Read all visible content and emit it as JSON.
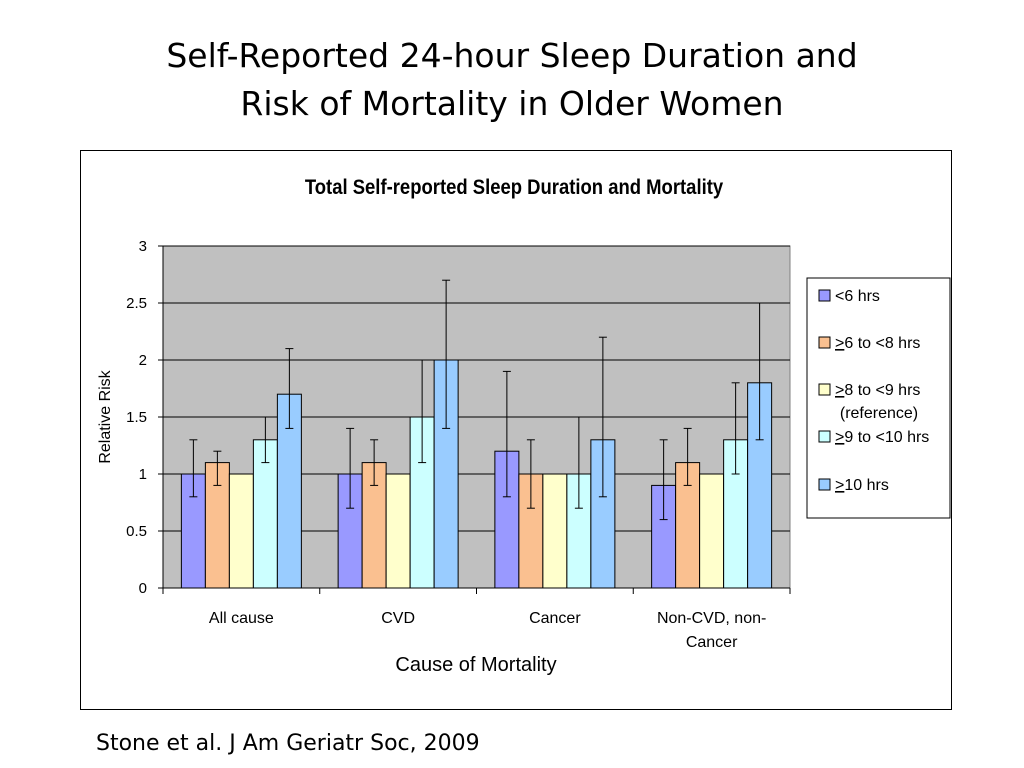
{
  "slide": {
    "title_line1": "Self-Reported 24-hour Sleep Duration and",
    "title_line2": "Risk of Mortality in Older Women",
    "citation": "Stone et al. J Am Geriatr Soc, 2009"
  },
  "chart_data": {
    "type": "bar",
    "title": "Total Self-reported Sleep Duration and Mortality",
    "xlabel": "Cause of Mortality",
    "ylabel": "Relative Risk",
    "ylim": [
      0,
      3
    ],
    "yticks": [
      0,
      0.5,
      1,
      1.5,
      2,
      2.5,
      3
    ],
    "ytick_labels": [
      "0",
      "0.5",
      "1",
      "1.5",
      "2",
      "2.5",
      "3"
    ],
    "grid": true,
    "legend_position": "right",
    "categories": [
      [
        "All cause"
      ],
      [
        "CVD"
      ],
      [
        "Cancer"
      ],
      [
        "Non-CVD, non-",
        "Cancer"
      ]
    ],
    "series": [
      {
        "name": "<6 hrs",
        "color": "#9999ff",
        "values": [
          1.0,
          1.0,
          1.2,
          0.9
        ],
        "error_low": [
          0.8,
          0.7,
          0.8,
          0.6
        ],
        "error_high": [
          1.3,
          1.4,
          1.9,
          1.3
        ]
      },
      {
        "name": ">6 to <8 hrs",
        "color": "#fac090",
        "values": [
          1.1,
          1.1,
          1.0,
          1.1
        ],
        "error_low": [
          0.9,
          0.9,
          0.7,
          0.9
        ],
        "error_high": [
          1.2,
          1.3,
          1.3,
          1.4
        ]
      },
      {
        "name": ">8 to <9 hrs (reference)",
        "color": "#ffffcc",
        "values": [
          1.0,
          1.0,
          1.0,
          1.0
        ]
      },
      {
        "name": ">9 to <10 hrs",
        "color": "#ccffff",
        "values": [
          1.3,
          1.5,
          1.0,
          1.3
        ],
        "error_low": [
          1.1,
          1.1,
          0.7,
          1.0
        ],
        "error_high": [
          1.5,
          2.0,
          1.5,
          1.8
        ]
      },
      {
        "name": ">10 hrs",
        "color": "#99ccff",
        "values": [
          1.7,
          2.0,
          1.3,
          1.8
        ],
        "error_low": [
          1.4,
          1.4,
          0.8,
          1.3
        ],
        "error_high": [
          2.1,
          2.7,
          2.2,
          2.5
        ]
      }
    ],
    "legend_lines": [
      [
        {
          "t": "<6 hrs"
        }
      ],
      [
        {
          "t": ">",
          "u": true
        },
        {
          "t": "6 to <8 hrs"
        }
      ],
      [
        {
          "t": ">",
          "u": true
        },
        {
          "t": "8 to <9 hrs"
        }
      ],
      [
        {
          "t": "(reference)"
        }
      ],
      [
        {
          "t": ">",
          "u": true
        },
        {
          "t": "9 to <10 hrs"
        }
      ],
      [
        {
          "t": ">",
          "u": true
        },
        {
          "t": "10 hrs"
        }
      ]
    ],
    "colors": {
      "plot_bg": "#c0c0c0",
      "grid": "#000000",
      "bar_stroke": "#000000"
    }
  }
}
